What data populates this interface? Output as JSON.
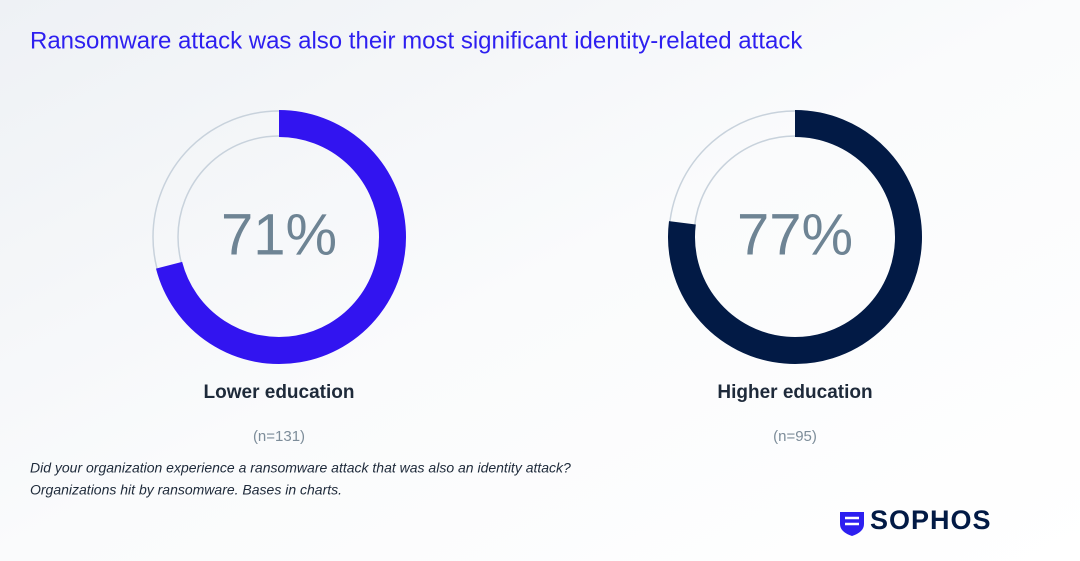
{
  "title": "Ransomware attack was also their most significant identity-related attack",
  "chart_data": [
    {
      "type": "donut",
      "name": "Lower education",
      "base": "(n=131)",
      "values": [
        71
      ],
      "value_labels": [
        "71%"
      ],
      "color": "#3214f0"
    },
    {
      "type": "donut",
      "name": "Higher education",
      "base": "(n=95)",
      "values": [
        77
      ],
      "value_labels": [
        "77%"
      ],
      "color": "#021a45"
    }
  ],
  "footnote": [
    "Did your organization experience a ransomware attack that was also an identity attack?",
    "Organizations hit by ransomware. Bases in charts."
  ],
  "logo": "SOPHOS"
}
